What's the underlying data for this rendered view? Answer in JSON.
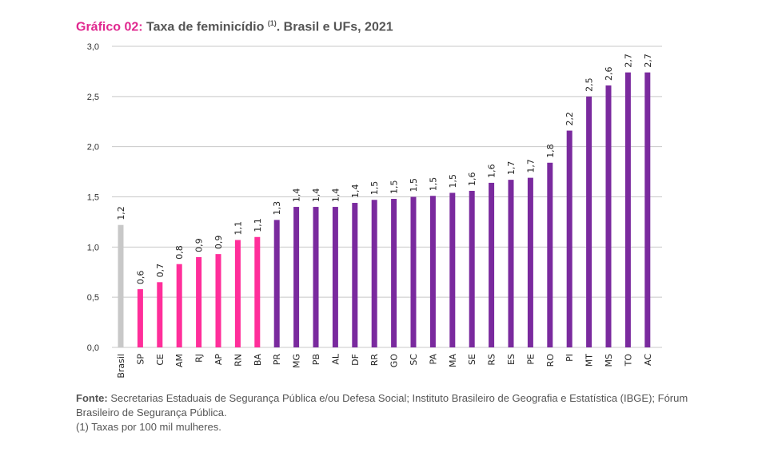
{
  "title": {
    "prefix": "Gráfico 02:",
    "text": " Taxa de feminicídio ",
    "footnote_mark": "(1)",
    "suffix": ". Brasil e UFs, 2021"
  },
  "colors": {
    "brasil": "#c8c8c8",
    "pink": "#ff2e9a",
    "purple": "#7a2a9e",
    "grid": "#c8c8c8"
  },
  "chart_data": {
    "type": "bar",
    "title": "Gráfico 02: Taxa de feminicídio (1). Brasil e UFs, 2021",
    "xlabel": "",
    "ylabel": "",
    "ylim": [
      0,
      3.0
    ],
    "yticks": [
      "0,0",
      "0,5",
      "1,0",
      "1,5",
      "2,0",
      "2,5",
      "3,0"
    ],
    "grid": true,
    "categories": [
      "Brasil",
      "SP",
      "CE",
      "AM",
      "RJ",
      "AP",
      "RN",
      "BA",
      "PR",
      "MG",
      "PB",
      "AL",
      "DF",
      "RR",
      "GO",
      "SC",
      "PA",
      "MA",
      "SE",
      "RS",
      "ES",
      "PE",
      "RO",
      "PI",
      "MT",
      "MS",
      "TO",
      "AC"
    ],
    "values": [
      1.22,
      0.58,
      0.65,
      0.83,
      0.9,
      0.93,
      1.07,
      1.1,
      1.27,
      1.4,
      1.4,
      1.4,
      1.44,
      1.47,
      1.48,
      1.5,
      1.51,
      1.54,
      1.56,
      1.64,
      1.67,
      1.69,
      1.84,
      2.16,
      2.5,
      2.61,
      2.74,
      2.74
    ],
    "labels": [
      "1,2",
      "0,6",
      "0,7",
      "0,8",
      "0,9",
      "0,9",
      "1,1",
      "1,1",
      "1,3",
      "1,4",
      "1,4",
      "1,4",
      "1,4",
      "1,5",
      "1,5",
      "1,5",
      "1,5",
      "1,5",
      "1,6",
      "1,6",
      "1,7",
      "1,7",
      "1,8",
      "2,2",
      "2,5",
      "2,6",
      "2,7",
      "2,7"
    ],
    "color_groups": [
      "brasil",
      "pink",
      "pink",
      "pink",
      "pink",
      "pink",
      "pink",
      "pink",
      "purple",
      "purple",
      "purple",
      "purple",
      "purple",
      "purple",
      "purple",
      "purple",
      "purple",
      "purple",
      "purple",
      "purple",
      "purple",
      "purple",
      "purple",
      "purple",
      "purple",
      "purple",
      "purple",
      "purple"
    ]
  },
  "source": {
    "label": "Fonte:",
    "text": " Secretarias Estaduais de Segurança Pública e/ou Defesa Social; Instituto Brasileiro de Geografia e Estatística (IBGE); Fórum Brasileiro de Segurança Pública.",
    "note": "(1) Taxas por 100 mil mulheres."
  }
}
